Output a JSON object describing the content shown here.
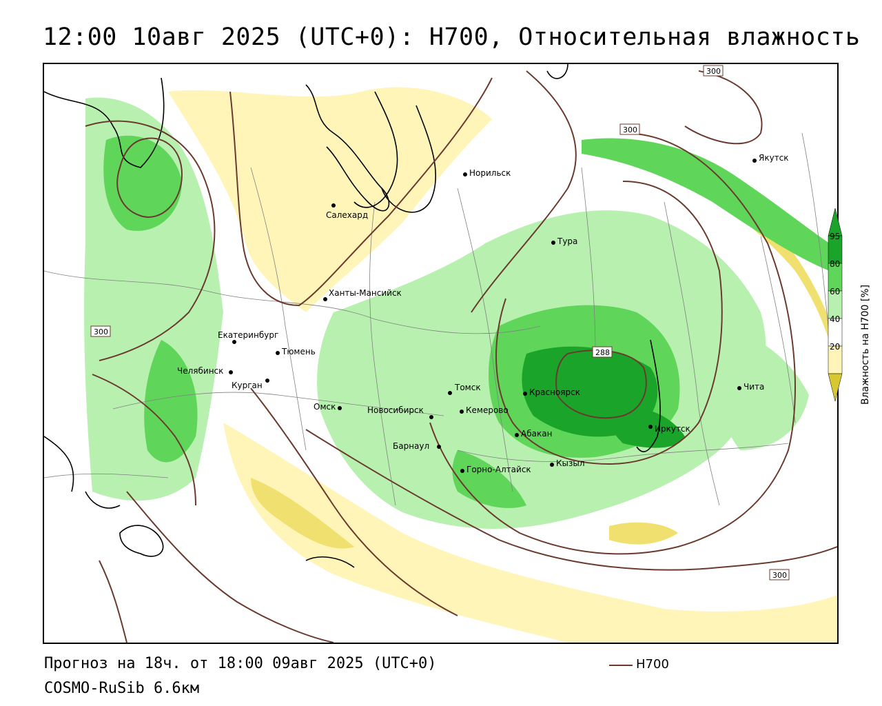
{
  "title": "12:00 10авг 2025 (UTC+0): H700, Относительная влажность",
  "footer": {
    "forecast": "Прогноз на 18ч. от 18:00 09авг 2025 (UTC+0)",
    "model": "COSMO-RuSib 6.6км",
    "line_legend": "H700"
  },
  "colors": {
    "contour": "#6b3a2e",
    "green_light": "#b8f0b0",
    "green_mid": "#5fd65a",
    "green_dark": "#1aa52a",
    "yellow_light": "#fff5b8",
    "yellow_mid": "#f0e070",
    "yellow_dark": "#d8c830",
    "land_border": "#000000",
    "admin_border": "#808080"
  },
  "colorbar": {
    "title": "Влажность на H700 [%]",
    "ticks": [
      "95",
      "80",
      "60",
      "40",
      "20"
    ]
  },
  "isohypse_labels": [
    {
      "id": "iso-300-ne",
      "text": "300"
    },
    {
      "id": "iso-300-n",
      "text": "300"
    },
    {
      "id": "iso-300-w",
      "text": "300"
    },
    {
      "id": "iso-288",
      "text": "288"
    },
    {
      "id": "iso-300-se",
      "text": "300"
    }
  ],
  "cities": [
    {
      "name": "Якутск"
    },
    {
      "name": "Норильск"
    },
    {
      "name": "Салехард"
    },
    {
      "name": "Тура"
    },
    {
      "name": "Ханты-Мансийск"
    },
    {
      "name": "Екатеринбург"
    },
    {
      "name": "Тюмень"
    },
    {
      "name": "Челябинск"
    },
    {
      "name": "Курган"
    },
    {
      "name": "Омск"
    },
    {
      "name": "Новосибирск"
    },
    {
      "name": "Томск"
    },
    {
      "name": "Кемерово"
    },
    {
      "name": "Красноярск"
    },
    {
      "name": "Барнаул"
    },
    {
      "name": "Абакан"
    },
    {
      "name": "Иркутск"
    },
    {
      "name": "Чита"
    },
    {
      "name": "Горно-Алтайск"
    },
    {
      "name": "Кызыл"
    }
  ]
}
